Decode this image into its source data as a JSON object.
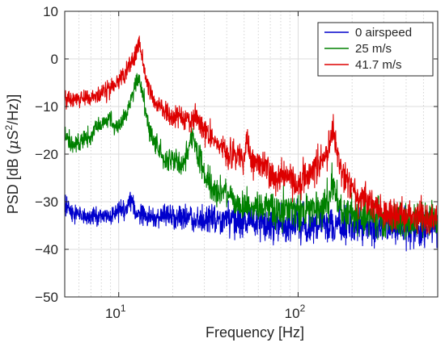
{
  "chart_data": {
    "type": "line",
    "title": "",
    "xlabel": "Frequency [Hz]",
    "ylabel_parts": {
      "prefix": "PSD [dB (",
      "mu": "μ",
      "unit": "S",
      "exp": "2",
      "suffix": "/Hz)]"
    },
    "xscale": "log",
    "xlim": [
      5,
      600
    ],
    "ylim": [
      -50,
      10
    ],
    "xticks": [
      10,
      100
    ],
    "xtick_labels": [
      {
        "base": "10",
        "exp": "1"
      },
      {
        "base": "10",
        "exp": "2"
      }
    ],
    "yticks": [
      10,
      0,
      -10,
      -20,
      -30,
      -40,
      -50
    ],
    "ytick_labels": [
      "10",
      "0",
      "−10",
      "−20",
      "−30",
      "−40",
      "−50"
    ],
    "grid": true,
    "minor_grid": true,
    "legend_placement": "top-right",
    "series": [
      {
        "name": "0 airspeed",
        "color": "#0000cc",
        "points": [
          [
            5,
            -30.5
          ],
          [
            5.5,
            -32.5
          ],
          [
            6,
            -32.8
          ],
          [
            7,
            -33.3
          ],
          [
            8,
            -32.8
          ],
          [
            9,
            -33.2
          ],
          [
            10,
            -32
          ],
          [
            11,
            -31.8
          ],
          [
            11.8,
            -29.2
          ],
          [
            12.5,
            -33
          ],
          [
            14,
            -32.8
          ],
          [
            16,
            -33.5
          ],
          [
            18,
            -33.4
          ],
          [
            20,
            -33.2
          ],
          [
            25,
            -33.5
          ],
          [
            30,
            -33.6
          ],
          [
            40,
            -33.8
          ],
          [
            50,
            -34.1
          ],
          [
            60,
            -34.3
          ],
          [
            80,
            -34.5
          ],
          [
            100,
            -34.6
          ],
          [
            150,
            -34.8
          ],
          [
            200,
            -35
          ],
          [
            300,
            -35.3
          ],
          [
            400,
            -35.5
          ],
          [
            500,
            -35.8
          ],
          [
            600,
            -36
          ]
        ]
      },
      {
        "name": "25 m/s",
        "color": "#008000",
        "points": [
          [
            5,
            -15.8
          ],
          [
            5.5,
            -18
          ],
          [
            6,
            -17.5
          ],
          [
            7,
            -16
          ],
          [
            7.5,
            -14.2
          ],
          [
            8,
            -13.5
          ],
          [
            8.5,
            -13
          ],
          [
            9,
            -12.2
          ],
          [
            9.5,
            -14.5
          ],
          [
            10,
            -14
          ],
          [
            11,
            -11.5
          ],
          [
            12,
            -6.8
          ],
          [
            12.5,
            -4.8
          ],
          [
            13,
            -4.2
          ],
          [
            13.5,
            -6.5
          ],
          [
            14,
            -10.5
          ],
          [
            15,
            -15.5
          ],
          [
            16,
            -17.5
          ],
          [
            18,
            -21.5
          ],
          [
            20,
            -21
          ],
          [
            22,
            -22.5
          ],
          [
            24,
            -20
          ],
          [
            25,
            -17
          ],
          [
            26,
            -15.8
          ],
          [
            27,
            -18.8
          ],
          [
            30,
            -24
          ],
          [
            33,
            -27
          ],
          [
            36,
            -28.5
          ],
          [
            38,
            -27.3
          ],
          [
            40,
            -28
          ],
          [
            45,
            -30.3
          ],
          [
            50,
            -30.8
          ],
          [
            60,
            -31
          ],
          [
            70,
            -31.5
          ],
          [
            80,
            -31.8
          ],
          [
            100,
            -31.9
          ],
          [
            120,
            -31.5
          ],
          [
            140,
            -31
          ],
          [
            150,
            -29
          ],
          [
            155,
            -25.5
          ],
          [
            160,
            -27.5
          ],
          [
            170,
            -31.5
          ],
          [
            200,
            -32.5
          ],
          [
            250,
            -33
          ],
          [
            300,
            -33.5
          ],
          [
            400,
            -33.8
          ],
          [
            500,
            -34
          ],
          [
            600,
            -34.2
          ]
        ]
      },
      {
        "name": "41.7 m/s",
        "color": "#dd0000",
        "points": [
          [
            5,
            -8.5
          ],
          [
            6,
            -8.2
          ],
          [
            7,
            -8
          ],
          [
            8,
            -7.2
          ],
          [
            9,
            -6.5
          ],
          [
            10,
            -4.8
          ],
          [
            11,
            -2.5
          ],
          [
            12,
            0
          ],
          [
            12.5,
            2
          ],
          [
            13,
            2.5
          ],
          [
            13.5,
            1
          ],
          [
            14,
            -3
          ],
          [
            15,
            -7
          ],
          [
            16,
            -9.5
          ],
          [
            18,
            -11
          ],
          [
            20,
            -12
          ],
          [
            23,
            -12.5
          ],
          [
            25,
            -13.2
          ],
          [
            27,
            -12
          ],
          [
            30,
            -15
          ],
          [
            35,
            -17.5
          ],
          [
            40,
            -19
          ],
          [
            45,
            -20.5
          ],
          [
            50,
            -20.8
          ],
          [
            52,
            -16.8
          ],
          [
            54,
            -21
          ],
          [
            60,
            -22
          ],
          [
            70,
            -24
          ],
          [
            80,
            -25
          ],
          [
            90,
            -25.5
          ],
          [
            100,
            -26
          ],
          [
            110,
            -25
          ],
          [
            120,
            -23.5
          ],
          [
            130,
            -22
          ],
          [
            140,
            -20.2
          ],
          [
            150,
            -18.2
          ],
          [
            155,
            -15
          ],
          [
            160,
            -18
          ],
          [
            170,
            -22
          ],
          [
            180,
            -24.5
          ],
          [
            200,
            -27
          ],
          [
            220,
            -29
          ],
          [
            250,
            -30.5
          ],
          [
            300,
            -32.5
          ],
          [
            350,
            -32.8
          ],
          [
            400,
            -33
          ],
          [
            500,
            -33.2
          ],
          [
            600,
            -33.5
          ]
        ]
      }
    ]
  }
}
